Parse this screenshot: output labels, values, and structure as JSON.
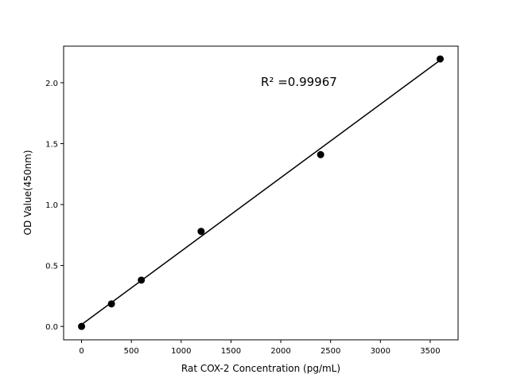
{
  "chart_data": {
    "type": "scatter",
    "title": "",
    "xlabel": "Rat COX-2 Concentration (pg/mL)",
    "ylabel": "OD Value(450nm)",
    "xlim": [
      -180,
      3780
    ],
    "ylim": [
      -0.11,
      2.3
    ],
    "xticks": [
      0,
      500,
      1000,
      1500,
      2000,
      2500,
      3000,
      3500
    ],
    "yticks": [
      0.0,
      0.5,
      1.0,
      1.5,
      2.0
    ],
    "ytick_labels": [
      "0.0",
      "0.5",
      "1.0",
      "1.5",
      "2.0"
    ],
    "grid": false,
    "points": {
      "x": [
        0,
        300,
        600,
        1200,
        2400,
        3600
      ],
      "y": [
        0.0,
        0.185,
        0.38,
        0.78,
        1.41,
        2.195
      ],
      "color": "#000000"
    },
    "fit_line": {
      "x": [
        0,
        3600
      ],
      "y": [
        0.015,
        2.185
      ],
      "color": "#000000"
    },
    "annotation": {
      "text": "R² =0.99967",
      "x": 1800,
      "y": 2.0
    }
  }
}
